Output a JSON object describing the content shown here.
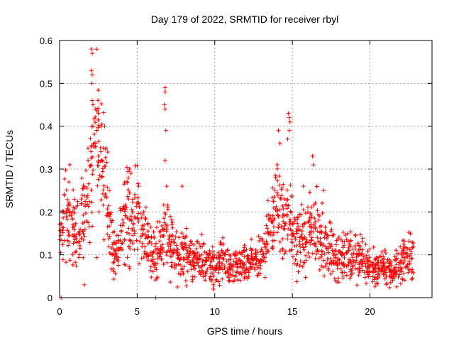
{
  "chart_data": {
    "type": "scatter",
    "title": "Day 179 of 2022, SRMTID for receiver rbyl",
    "xlabel": "GPS time / hours",
    "ylabel": "SRMTID / TECUs",
    "xlim": [
      0,
      24
    ],
    "ylim": [
      0,
      0.6
    ],
    "xticks": [
      "0",
      "5",
      "10",
      "15",
      "20"
    ],
    "yticks": [
      "0",
      "0.1",
      "0.2",
      "0.3",
      "0.4",
      "0.5",
      "0.6"
    ],
    "grid": true,
    "marker": "+",
    "color": "#ff0000",
    "series": [
      {
        "name": "SRMTID",
        "anchors": [
          [
            0.0,
            0.12
          ],
          [
            0.3,
            0.2
          ],
          [
            0.6,
            0.19
          ],
          [
            0.9,
            0.16
          ],
          [
            1.2,
            0.15
          ],
          [
            1.5,
            0.18
          ],
          [
            1.8,
            0.22
          ],
          [
            2.1,
            0.3
          ],
          [
            2.3,
            0.38
          ],
          [
            2.6,
            0.32
          ],
          [
            2.9,
            0.3
          ],
          [
            3.2,
            0.16
          ],
          [
            3.5,
            0.1
          ],
          [
            3.8,
            0.12
          ],
          [
            4.1,
            0.17
          ],
          [
            4.4,
            0.2
          ],
          [
            4.7,
            0.16
          ],
          [
            5.0,
            0.19
          ],
          [
            5.4,
            0.13
          ],
          [
            5.8,
            0.13
          ],
          [
            6.2,
            0.1
          ],
          [
            6.6,
            0.12
          ],
          [
            6.8,
            0.18
          ],
          [
            7.1,
            0.13
          ],
          [
            7.5,
            0.1
          ],
          [
            8.0,
            0.1
          ],
          [
            8.5,
            0.09
          ],
          [
            9.0,
            0.09
          ],
          [
            9.5,
            0.08
          ],
          [
            10.0,
            0.08
          ],
          [
            10.5,
            0.09
          ],
          [
            11.0,
            0.07
          ],
          [
            11.5,
            0.07
          ],
          [
            12.0,
            0.08
          ],
          [
            12.5,
            0.08
          ],
          [
            13.0,
            0.09
          ],
          [
            13.5,
            0.16
          ],
          [
            13.8,
            0.2
          ],
          [
            14.1,
            0.22
          ],
          [
            14.4,
            0.2
          ],
          [
            14.7,
            0.22
          ],
          [
            15.0,
            0.15
          ],
          [
            15.3,
            0.12
          ],
          [
            15.6,
            0.13
          ],
          [
            16.0,
            0.14
          ],
          [
            16.4,
            0.16
          ],
          [
            16.8,
            0.15
          ],
          [
            17.2,
            0.12
          ],
          [
            17.6,
            0.1
          ],
          [
            18.0,
            0.09
          ],
          [
            18.5,
            0.1
          ],
          [
            19.0,
            0.1
          ],
          [
            19.5,
            0.09
          ],
          [
            20.0,
            0.07
          ],
          [
            20.5,
            0.07
          ],
          [
            21.0,
            0.07
          ],
          [
            21.5,
            0.06
          ],
          [
            22.0,
            0.08
          ],
          [
            22.5,
            0.1
          ],
          [
            22.8,
            0.1
          ]
        ],
        "peaks": [
          [
            2.05,
            0.58
          ],
          [
            2.1,
            0.57
          ],
          [
            2.05,
            0.53
          ],
          [
            2.1,
            0.52
          ],
          [
            2.08,
            0.5
          ],
          [
            2.1,
            0.46
          ],
          [
            2.15,
            0.45
          ],
          [
            2.3,
            0.44
          ],
          [
            2.5,
            0.43
          ],
          [
            2.7,
            0.4
          ],
          [
            2.9,
            0.4
          ],
          [
            6.8,
            0.49
          ],
          [
            6.8,
            0.48
          ],
          [
            6.75,
            0.45
          ],
          [
            6.8,
            0.44
          ],
          [
            6.85,
            0.39
          ],
          [
            6.8,
            0.32
          ],
          [
            6.9,
            0.26
          ],
          [
            14.1,
            0.39
          ],
          [
            14.2,
            0.36
          ],
          [
            14.75,
            0.43
          ],
          [
            14.8,
            0.42
          ],
          [
            14.85,
            0.41
          ],
          [
            14.8,
            0.39
          ],
          [
            14.7,
            0.37
          ],
          [
            16.3,
            0.33
          ],
          [
            16.35,
            0.31
          ],
          [
            4.5,
            0.3
          ],
          [
            4.6,
            0.29
          ],
          [
            5.1,
            0.26
          ],
          [
            7.9,
            0.26
          ],
          [
            0.6,
            0.27
          ],
          [
            1.6,
            0.03
          ],
          [
            9.9,
            0.02
          ],
          [
            9.9,
            0.03
          ],
          [
            3.2,
            0.25
          ],
          [
            4.2,
            0.27
          ],
          [
            15.7,
            0.26
          ],
          [
            17.0,
            0.25
          ]
        ],
        "baseline_points": [
          [
            0.1,
            0.0
          ],
          [
            6.2,
            0.0
          ]
        ]
      }
    ]
  }
}
